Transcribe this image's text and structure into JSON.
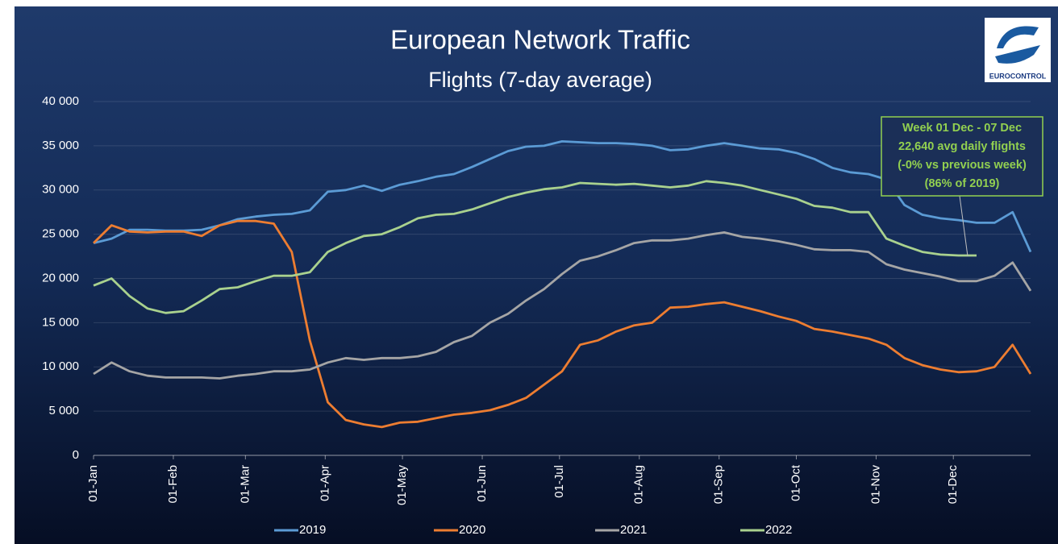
{
  "chart_data": {
    "type": "line",
    "title": "European Network Traffic",
    "subtitle": "Flights  (7-day average)",
    "logo_text": "EUROCONTROL",
    "annotation": [
      "Week 01 Dec - 07 Dec",
      "22,640 avg daily flights",
      "(-0% vs previous week)",
      "(86% of 2019)"
    ],
    "annotation_color": "#92d050",
    "x": [
      0,
      7,
      14,
      21,
      28,
      35,
      42,
      49,
      56,
      63,
      70,
      77,
      84,
      91,
      98,
      105,
      112,
      119,
      126,
      133,
      140,
      147,
      154,
      161,
      168,
      175,
      182,
      189,
      196,
      203,
      210,
      217,
      224,
      231,
      238,
      245,
      252,
      259,
      266,
      273,
      280,
      287,
      294,
      301,
      308,
      315,
      322,
      329,
      336,
      343,
      350,
      357,
      364
    ],
    "xlim": [
      0,
      364
    ],
    "xticks": [
      {
        "value": 0,
        "label": "01-Jan"
      },
      {
        "value": 31,
        "label": "01-Feb"
      },
      {
        "value": 59,
        "label": "01-Mar"
      },
      {
        "value": 90,
        "label": "01-Apr"
      },
      {
        "value": 120,
        "label": "01-May"
      },
      {
        "value": 151,
        "label": "01-Jun"
      },
      {
        "value": 181,
        "label": "01-Jul"
      },
      {
        "value": 212,
        "label": "01-Aug"
      },
      {
        "value": 243,
        "label": "01-Sep"
      },
      {
        "value": 273,
        "label": "01-Oct"
      },
      {
        "value": 304,
        "label": "01-Nov"
      },
      {
        "value": 334,
        "label": "01-Dec"
      }
    ],
    "ylim": [
      0,
      40000
    ],
    "yticks": [
      0,
      {
        "value": 5000,
        "label": "5 000"
      },
      {
        "value": 10000,
        "label": "10 000"
      },
      {
        "value": 15000,
        "label": "15 000"
      },
      {
        "value": 20000,
        "label": "20 000"
      },
      {
        "value": 25000,
        "label": "25 000"
      },
      {
        "value": 30000,
        "label": "30 000"
      },
      {
        "value": 35000,
        "label": "35 000"
      },
      {
        "value": 40000,
        "label": "40 000"
      }
    ],
    "grid": true,
    "legend": "bottom",
    "series": [
      {
        "name": "2019",
        "color": "#5b9bd5",
        "values": [
          24000,
          24500,
          25500,
          25500,
          25400,
          25400,
          25500,
          26000,
          26700,
          27000,
          27200,
          27300,
          27700,
          29800,
          30000,
          30500,
          29900,
          30600,
          31000,
          31500,
          31800,
          32600,
          33500,
          34400,
          34900,
          35000,
          35500,
          35400,
          35300,
          35300,
          35200,
          35000,
          34500,
          34600,
          35000,
          35300,
          35000,
          34700,
          34600,
          34200,
          33500,
          32500,
          32000,
          31800,
          31200,
          28300,
          27200,
          26800,
          26600,
          26300,
          26300,
          27500,
          23000
        ]
      },
      {
        "name": "2020",
        "color": "#ed7d31",
        "values": [
          24000,
          26000,
          25300,
          25200,
          25300,
          25300,
          24800,
          26000,
          26500,
          26500,
          26200,
          23000,
          13000,
          6000,
          4000,
          3500,
          3200,
          3700,
          3800,
          4200,
          4600,
          4800,
          5100,
          5700,
          6500,
          8000,
          9500,
          12500,
          13000,
          14000,
          14700,
          15000,
          16700,
          16800,
          17100,
          17300,
          16800,
          16300,
          15700,
          15200,
          14300,
          14000,
          13600,
          13200,
          12500,
          11000,
          10200,
          9700,
          9400,
          9500,
          10000,
          12500,
          9200
        ]
      },
      {
        "name": "2021",
        "color": "#a5a5a5",
        "values": [
          9200,
          10500,
          9500,
          9000,
          8800,
          8800,
          8800,
          8700,
          9000,
          9200,
          9500,
          9500,
          9700,
          10500,
          11000,
          10800,
          11000,
          11000,
          11200,
          11700,
          12800,
          13500,
          15000,
          16000,
          17500,
          18800,
          20500,
          22000,
          22500,
          23200,
          24000,
          24300,
          24300,
          24500,
          24900,
          25200,
          24700,
          24500,
          24200,
          23800,
          23300,
          23200,
          23200,
          23000,
          21600,
          21000,
          20600,
          20200,
          19700,
          19700,
          20300,
          21800,
          18600
        ]
      },
      {
        "name": "2022",
        "color": "#a9d18e",
        "values": [
          19200,
          20000,
          18000,
          16600,
          16100,
          16300,
          17500,
          18800,
          19000,
          19700,
          20300,
          20300,
          20700,
          23000,
          24000,
          24800,
          25000,
          25800,
          26800,
          27200,
          27300,
          27800,
          28500,
          29200,
          29700,
          30100,
          30300,
          30800,
          30700,
          30600,
          30700,
          30500,
          30300,
          30500,
          31000,
          30800,
          30500,
          30000,
          29500,
          29000,
          28200,
          28000,
          27500,
          27500,
          24500,
          23700,
          23000,
          22700,
          22600,
          22600,
          null,
          null,
          null
        ]
      }
    ]
  }
}
